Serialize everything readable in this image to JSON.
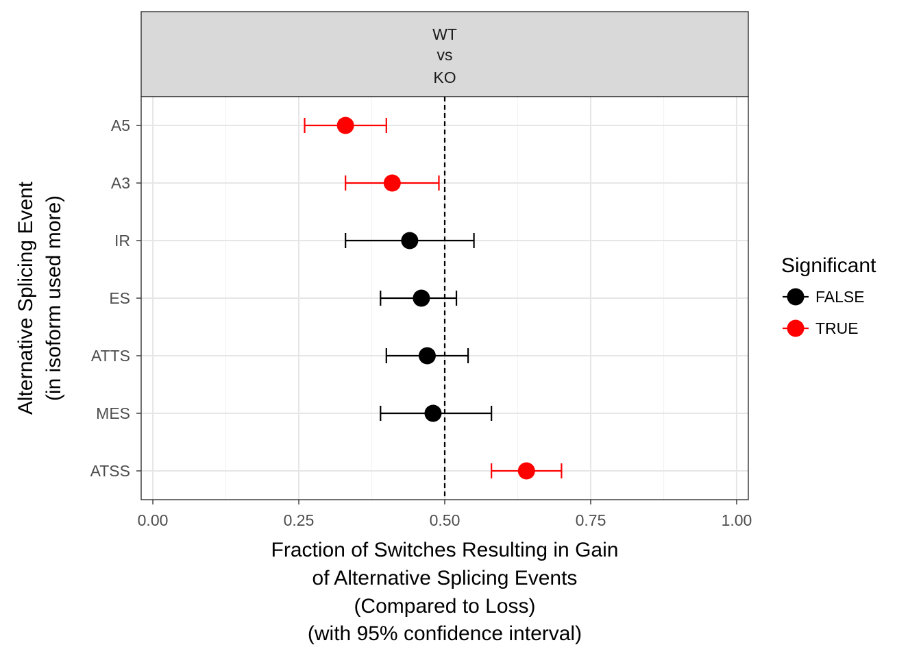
{
  "chart_data": {
    "type": "scatter",
    "subtype": "dot-with-error-bars",
    "facet_label": [
      "WT",
      "vs",
      "KO"
    ],
    "xlabel": [
      "Fraction of Switches Resulting in Gain",
      "of Alternative Splicing Events",
      "(Compared to Loss)",
      "(with 95% confidence interval)"
    ],
    "ylabel": [
      "Alternative Splicing Event",
      "(in isoform used more)"
    ],
    "xlim": [
      -0.02,
      1.02
    ],
    "x_ticks": [
      0,
      0.25,
      0.5,
      0.75,
      1.0
    ],
    "x_tick_labels": [
      "0.00",
      "0.25",
      "0.50",
      "0.75",
      "1.00"
    ],
    "categories": [
      "A5",
      "A3",
      "IR",
      "ES",
      "ATTS",
      "MES",
      "ATSS"
    ],
    "points": [
      {
        "category": "A5",
        "value": 0.33,
        "ci_low": 0.26,
        "ci_high": 0.4,
        "significant": true
      },
      {
        "category": "A3",
        "value": 0.41,
        "ci_low": 0.33,
        "ci_high": 0.49,
        "significant": true
      },
      {
        "category": "IR",
        "value": 0.44,
        "ci_low": 0.33,
        "ci_high": 0.55,
        "significant": false
      },
      {
        "category": "ES",
        "value": 0.46,
        "ci_low": 0.39,
        "ci_high": 0.52,
        "significant": false
      },
      {
        "category": "ATTS",
        "value": 0.47,
        "ci_low": 0.4,
        "ci_high": 0.54,
        "significant": false
      },
      {
        "category": "MES",
        "value": 0.48,
        "ci_low": 0.39,
        "ci_high": 0.58,
        "significant": false
      },
      {
        "category": "ATSS",
        "value": 0.64,
        "ci_low": 0.58,
        "ci_high": 0.7,
        "significant": true
      }
    ],
    "reference_line": {
      "x": 0.5,
      "style": "dashed"
    },
    "legend": {
      "title": "Significant",
      "placement": "right",
      "entries": [
        {
          "label": "FALSE",
          "color": "#000000"
        },
        {
          "label": "TRUE",
          "color": "#ff0000"
        }
      ]
    },
    "grid": true,
    "colors": {
      "false": "#000000",
      "true": "#ff0000",
      "strip_bg": "#d9d9d9",
      "grid": "#ebebeb"
    }
  }
}
